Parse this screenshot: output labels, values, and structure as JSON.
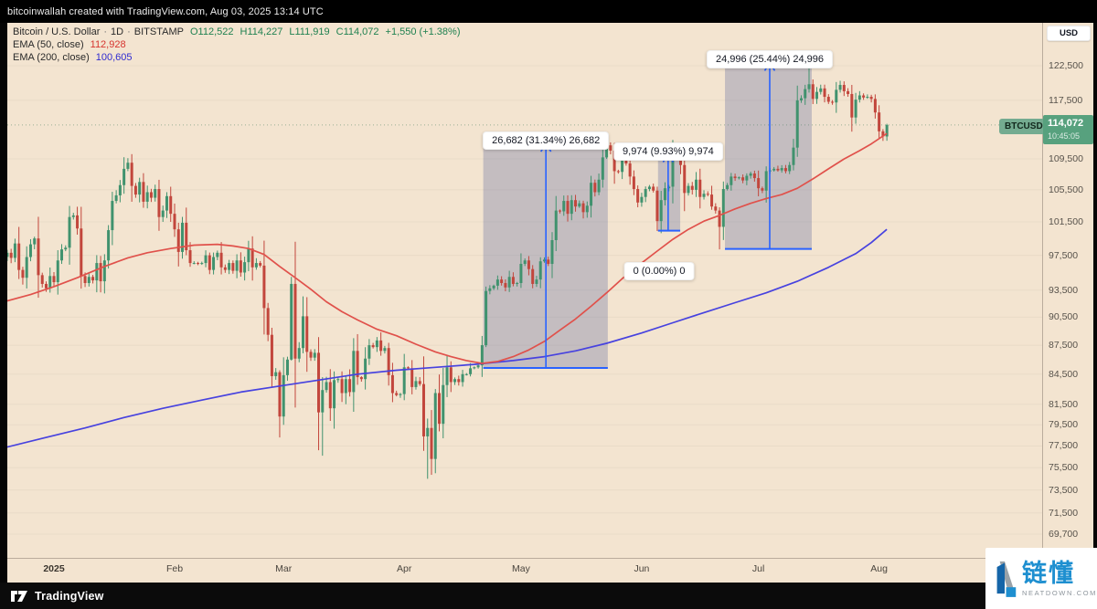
{
  "top_bar": {
    "text": "bitcoinwallah created with TradingView.com, Aug 03, 2025 13:14 UTC"
  },
  "legend": {
    "title": "Bitcoin / U.S. Dollar",
    "dot": "·",
    "interval": "1D",
    "exchange": "BITSTAMP",
    "open": "O112,522",
    "high": "H114,227",
    "low": "L111,919",
    "close": "C114,072",
    "change": "+1,550 (+1.38%)",
    "ema50_label": "EMA (50, close)",
    "ema50_value": "112,928",
    "ema200_label": "EMA (200, close)",
    "ema200_value": "100,605"
  },
  "price_scale": {
    "currency_button": "USD",
    "last_label": {
      "symbol": "BTCUSD",
      "price": "114,072",
      "countdown": "10:45:05"
    }
  },
  "footer": {
    "brand": "TradingView"
  },
  "watermark": {
    "cn": "链懂",
    "domain": "NEATDOWN.COM"
  },
  "chart_data": {
    "type": "candlestick",
    "symbol": "BTCUSD",
    "exchange": "BITSTAMP",
    "interval": "1D",
    "scale": "log",
    "title": "Bitcoin / U.S. Dollar",
    "last": {
      "open": 112522,
      "high": 114227,
      "low": 111919,
      "close": 114072,
      "change": "+1,550",
      "change_pct": "+1.38%"
    },
    "ema50_current": 112928,
    "ema200_current": 100605,
    "start_date": "2024-12-20",
    "colors": {
      "up": "#40926e",
      "down": "#c2463c",
      "ema50": "#e0514b",
      "ema200": "#4742df",
      "measure": "#2962ff",
      "measure_fill": "rgba(99,110,160,0.33)"
    },
    "closes_k": [
      97.8,
      97.2,
      98.9,
      95.8,
      94.9,
      97.3,
      98.8,
      99.5,
      95.2,
      94.2,
      93.7,
      95.1,
      94.4,
      96.9,
      98.2,
      98.4,
      102.1,
      102.3,
      100.7,
      95.1,
      94.3,
      95.0,
      94.6,
      96.6,
      94.5,
      96.9,
      100.5,
      104.1,
      104.8,
      106.1,
      108.2,
      109.0,
      106.0,
      104.9,
      106.5,
      104.0,
      105.2,
      104.5,
      105.6,
      102.1,
      102.9,
      104.7,
      102.5,
      100.6,
      97.9,
      101.4,
      98.1,
      96.6,
      96.6,
      96.5,
      96.6,
      97.5,
      95.8,
      97.3,
      97.8,
      96.1,
      95.8,
      96.6,
      95.7,
      96.9,
      95.5,
      96.7,
      98.3,
      96.1,
      96.6,
      96.3,
      91.5,
      88.6,
      84.3,
      84.7,
      80.3,
      84.4,
      86.0,
      94.2,
      86.1,
      87.2,
      90.6,
      86.8,
      86.2,
      86.7,
      80.7,
      82.9,
      83.7,
      81.1,
      83.9,
      84.0,
      82.6,
      84.0,
      82.7,
      86.9,
      84.2,
      84.0,
      86.1,
      87.5,
      87.3,
      88.0,
      86.9,
      87.2,
      84.4,
      82.6,
      82.4,
      82.5,
      85.2,
      85.1,
      83.2,
      83.8,
      83.5,
      78.4,
      79.2,
      76.3,
      82.6,
      79.6,
      83.4,
      85.2,
      83.7,
      84.0,
      83.7,
      84.5,
      84.5,
      85.1,
      85.2,
      85.4,
      87.5,
      93.4,
      93.7,
      94.0,
      94.7,
      94.3,
      93.8,
      95.0,
      94.2,
      94.3,
      96.5,
      96.9,
      95.9,
      94.2,
      94.7,
      96.8,
      97.0,
      96.5,
      99.3,
      102.9,
      102.8,
      104.1,
      102.5,
      104.2,
      103.4,
      103.8,
      102.7,
      103.5,
      106.4,
      105.2,
      106.8,
      109.7,
      111.3,
      110.6,
      107.9,
      107.8,
      109.4,
      108.9,
      107.2,
      105.6,
      103.9,
      104.6,
      105.6,
      105.9,
      105.4,
      101.6,
      104.2,
      105.7,
      105.9,
      110.2,
      110.3,
      108.7,
      105.1,
      106.0,
      105.5,
      106.8,
      104.6,
      105.0,
      104.9,
      103.4,
      102.9,
      100.9,
      105.6,
      106.1,
      107.2,
      107.0,
      107.1,
      106.7,
      107.3,
      107.6,
      107.0,
      105.7,
      105.4,
      107.9,
      108.0,
      108.2,
      108.0,
      108.3,
      107.9,
      108.7,
      111.0,
      117.5,
      117.8,
      119.1,
      119.8,
      117.7,
      118.7,
      119.2,
      118.0,
      117.3,
      117.2,
      119.0,
      119.7,
      118.8,
      118.4,
      115.1,
      117.6,
      118.2,
      117.9,
      118.0,
      117.7,
      115.8,
      113.2,
      112.5,
      114.07
    ],
    "wick_overrides_k": {
      "31": [
        109.6,
        107.9
      ],
      "44": [
        101.4,
        96.2
      ],
      "70": [
        84.9,
        78.3
      ],
      "73": [
        95.0,
        85.9
      ],
      "81": [
        84.2,
        76.6
      ],
      "108": [
        80.1,
        74.5
      ],
      "110": [
        83.0,
        75.0
      ],
      "123": [
        93.9,
        87.3
      ],
      "154": [
        111.9,
        109.5
      ],
      "167": [
        105.9,
        100.4
      ],
      "183": [
        103.3,
        98.2
      ],
      "206": [
        123.2,
        118.6
      ],
      "225": [
        113.5,
        111.9
      ],
      "226": [
        114.227,
        111.919
      ]
    },
    "ema50_k": [
      [
        0,
        92.3
      ],
      [
        6,
        93.0
      ],
      [
        12,
        93.9
      ],
      [
        18,
        94.9
      ],
      [
        25,
        96.2
      ],
      [
        31,
        97.2
      ],
      [
        36,
        97.8
      ],
      [
        42,
        98.3
      ],
      [
        48,
        98.7
      ],
      [
        54,
        98.8
      ],
      [
        58,
        98.6
      ],
      [
        62,
        98.3
      ],
      [
        66,
        97.6
      ],
      [
        70,
        96.2
      ],
      [
        74,
        94.9
      ],
      [
        78,
        93.6
      ],
      [
        82,
        92.2
      ],
      [
        86,
        91.1
      ],
      [
        90,
        90.2
      ],
      [
        95,
        89.2
      ],
      [
        100,
        88.5
      ],
      [
        105,
        87.6
      ],
      [
        110,
        86.8
      ],
      [
        114,
        86.3
      ],
      [
        118,
        85.9
      ],
      [
        122,
        85.6
      ],
      [
        126,
        85.8
      ],
      [
        130,
        86.3
      ],
      [
        134,
        87.0
      ],
      [
        138,
        87.9
      ],
      [
        142,
        89.1
      ],
      [
        146,
        90.3
      ],
      [
        150,
        91.7
      ],
      [
        154,
        93.2
      ],
      [
        158,
        94.8
      ],
      [
        163,
        96.6
      ],
      [
        167,
        98.0
      ],
      [
        171,
        99.4
      ],
      [
        175,
        100.6
      ],
      [
        179,
        101.6
      ],
      [
        183,
        102.3
      ],
      [
        187,
        103.1
      ],
      [
        191,
        103.8
      ],
      [
        195,
        104.4
      ],
      [
        199,
        104.9
      ],
      [
        203,
        105.7
      ],
      [
        207,
        106.9
      ],
      [
        211,
        108.2
      ],
      [
        215,
        109.5
      ],
      [
        219,
        110.6
      ],
      [
        222,
        111.5
      ],
      [
        226,
        112.9
      ]
    ],
    "ema200_k": [
      [
        0,
        77.4
      ],
      [
        10,
        78.3
      ],
      [
        20,
        79.2
      ],
      [
        30,
        80.2
      ],
      [
        40,
        81.1
      ],
      [
        50,
        81.9
      ],
      [
        60,
        82.7
      ],
      [
        70,
        83.3
      ],
      [
        80,
        83.9
      ],
      [
        90,
        84.5
      ],
      [
        100,
        84.9
      ],
      [
        110,
        85.2
      ],
      [
        120,
        85.5
      ],
      [
        130,
        85.9
      ],
      [
        138,
        86.3
      ],
      [
        146,
        86.9
      ],
      [
        154,
        87.7
      ],
      [
        163,
        88.8
      ],
      [
        171,
        89.9
      ],
      [
        179,
        91.0
      ],
      [
        187,
        92.1
      ],
      [
        195,
        93.2
      ],
      [
        203,
        94.5
      ],
      [
        211,
        96.1
      ],
      [
        218,
        97.7
      ],
      [
        222,
        99.0
      ],
      [
        226,
        100.6
      ]
    ],
    "price_ticks": [
      122500,
      117500,
      109500,
      105500,
      101500,
      97500,
      93500,
      90500,
      87500,
      84500,
      81500,
      79500,
      77500,
      75500,
      73500,
      71500,
      69700
    ],
    "months": [
      {
        "label": "2025",
        "day": 12,
        "bold": true
      },
      {
        "label": "Feb",
        "day": 43
      },
      {
        "label": "Mar",
        "day": 71
      },
      {
        "label": "Apr",
        "day": 102
      },
      {
        "label": "May",
        "day": 132
      },
      {
        "label": "Jun",
        "day": 163
      },
      {
        "label": "Jul",
        "day": 193
      },
      {
        "label": "Aug",
        "day": 224
      }
    ],
    "measurements": [
      {
        "label": "26,682 (31.34%) 26,682",
        "d1": 122.3,
        "d2": 154.3,
        "p1": 85.13,
        "p2": 111.81,
        "label_day": 138.4
      },
      {
        "label": "9,974 (9.93%) 9,974",
        "d1": 167.2,
        "d2": 172.9,
        "p1": 100.44,
        "p2": 110.41,
        "label_day": 169.8
      },
      {
        "label": "24,996 (25.44%) 24,996",
        "d1": 184.4,
        "d2": 206.7,
        "p1": 98.25,
        "p2": 123.25,
        "label_day": 195.9
      },
      {
        "label": "0 (0.00%) 0",
        "d1": 167.5,
        "d2": 167.5,
        "p1": 98.33,
        "p2": 98.33,
        "label_only": true,
        "label_day": 167.5
      }
    ],
    "price_line": 114072,
    "visible_price_range": [
      67700,
      129000
    ],
    "grid": "faint-horizontal"
  }
}
